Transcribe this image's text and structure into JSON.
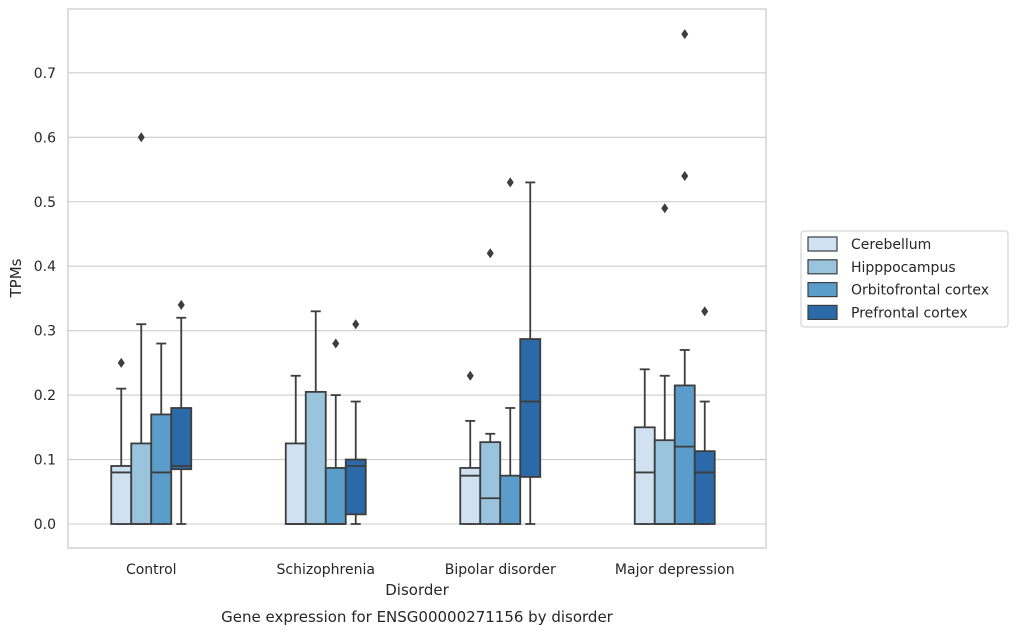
{
  "chart_data": {
    "type": "box",
    "xlabel": "Disorder",
    "ylabel": "TPMs",
    "caption": "Gene expression for ENSG00000271156 by disorder",
    "ylim": [
      -0.037,
      0.8
    ],
    "yticks": [
      "0.0",
      "0.1",
      "0.2",
      "0.3",
      "0.4",
      "0.5",
      "0.6",
      "0.7"
    ],
    "grid": "horizontal",
    "legend_position": "right",
    "categories": [
      "Control",
      "Schizophrenia",
      "Bipolar disorder",
      "Major depression"
    ],
    "series": [
      {
        "name": "Cerebellum",
        "color": "#d0e1f2",
        "boxes": [
          {
            "whisker_low": 0,
            "q1": 0,
            "median": 0.08,
            "q3": 0.09,
            "whisker_high": 0.21,
            "outliers": [
              0.25
            ]
          },
          {
            "whisker_low": 0,
            "q1": 0,
            "median": 0.0,
            "q3": 0.125,
            "whisker_high": 0.23,
            "outliers": []
          },
          {
            "whisker_low": 0,
            "q1": 0,
            "median": 0.075,
            "q3": 0.087,
            "whisker_high": 0.16,
            "outliers": [
              0.23
            ]
          },
          {
            "whisker_low": 0,
            "q1": 0,
            "median": 0.08,
            "q3": 0.15,
            "whisker_high": 0.24,
            "outliers": []
          }
        ]
      },
      {
        "name": "Hipppocampus",
        "color": "#9ac3dd",
        "boxes": [
          {
            "whisker_low": 0,
            "q1": 0,
            "median": 0.0,
            "q3": 0.125,
            "whisker_high": 0.31,
            "outliers": [
              0.6
            ]
          },
          {
            "whisker_low": 0,
            "q1": 0,
            "median": 0.0,
            "q3": 0.205,
            "whisker_high": 0.33,
            "outliers": []
          },
          {
            "whisker_low": 0,
            "q1": 0,
            "median": 0.04,
            "q3": 0.127,
            "whisker_high": 0.14,
            "outliers": [
              0.42
            ]
          },
          {
            "whisker_low": 0,
            "q1": 0,
            "median": 0.0,
            "q3": 0.13,
            "whisker_high": 0.23,
            "outliers": [
              0.49
            ]
          }
        ]
      },
      {
        "name": "Orbitofrontal cortex",
        "color": "#5a9dcb",
        "boxes": [
          {
            "whisker_low": 0,
            "q1": 0,
            "median": 0.08,
            "q3": 0.17,
            "whisker_high": 0.28,
            "outliers": []
          },
          {
            "whisker_low": 0,
            "q1": 0,
            "median": 0.0,
            "q3": 0.087,
            "whisker_high": 0.2,
            "outliers": [
              0.28
            ]
          },
          {
            "whisker_low": 0,
            "q1": 0,
            "median": 0.0,
            "q3": 0.075,
            "whisker_high": 0.18,
            "outliers": [
              0.53
            ]
          },
          {
            "whisker_low": 0,
            "q1": 0,
            "median": 0.12,
            "q3": 0.215,
            "whisker_high": 0.27,
            "outliers": [
              0.54,
              0.76
            ]
          }
        ]
      },
      {
        "name": "Prefrontal cortex",
        "color": "#2b69a8",
        "boxes": [
          {
            "whisker_low": 0,
            "q1": 0.085,
            "median": 0.09,
            "q3": 0.18,
            "whisker_high": 0.32,
            "outliers": [
              0.34
            ]
          },
          {
            "whisker_low": 0,
            "q1": 0.015,
            "median": 0.09,
            "q3": 0.1,
            "whisker_high": 0.19,
            "outliers": [
              0.31
            ]
          },
          {
            "whisker_low": 0,
            "q1": 0.073,
            "median": 0.19,
            "q3": 0.287,
            "whisker_high": 0.53,
            "outliers": []
          },
          {
            "whisker_low": 0,
            "q1": 0,
            "median": 0.08,
            "q3": 0.113,
            "whisker_high": 0.19,
            "outliers": [
              0.33
            ]
          }
        ]
      }
    ]
  }
}
